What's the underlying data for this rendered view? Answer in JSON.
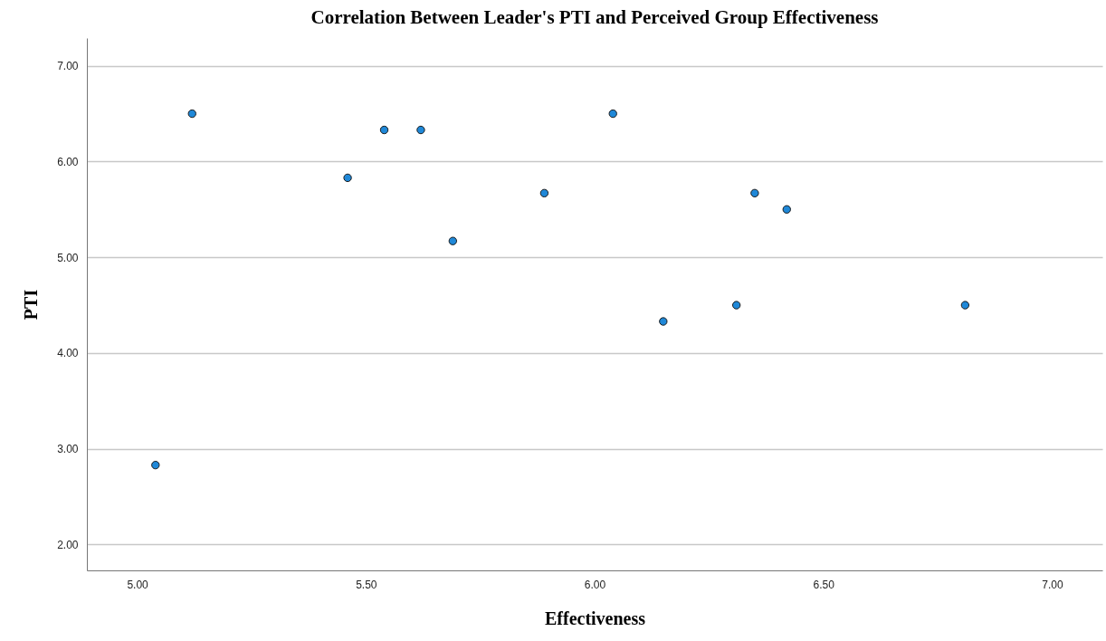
{
  "chart_data": {
    "type": "scatter",
    "title": "Correlation Between Leader's PTI and Perceived Group Effectiveness",
    "xlabel": "Effectiveness",
    "ylabel": "PTI",
    "x": [
      5.04,
      5.12,
      5.46,
      5.54,
      5.62,
      5.69,
      5.89,
      6.04,
      6.15,
      6.31,
      6.35,
      6.42,
      6.81
    ],
    "series": [
      {
        "color": "#1f88d8",
        "values": [
          2.83,
          6.5,
          5.83,
          6.33,
          6.33,
          5.17,
          5.67,
          6.5,
          4.33,
          4.5,
          5.67,
          5.5,
          4.5
        ]
      }
    ],
    "xlim": [
      4.89,
      7.11
    ],
    "ylim": [
      1.73,
      7.29
    ],
    "xticks": [
      {
        "value": 5,
        "label": "5.00"
      },
      {
        "value": 5.5,
        "label": "5.50"
      },
      {
        "value": 6,
        "label": "6.00"
      },
      {
        "value": 6.5,
        "label": "6.50"
      },
      {
        "value": 7,
        "label": "7.00"
      }
    ],
    "yticks": [
      {
        "value": 2,
        "label": "2.00"
      },
      {
        "value": 3,
        "label": "3.00"
      },
      {
        "value": 4,
        "label": "4.00"
      },
      {
        "value": 5,
        "label": "5.00"
      },
      {
        "value": 6,
        "label": "6.00"
      },
      {
        "value": 7,
        "label": "7.00"
      }
    ],
    "grid": "y",
    "marker": "circle"
  }
}
